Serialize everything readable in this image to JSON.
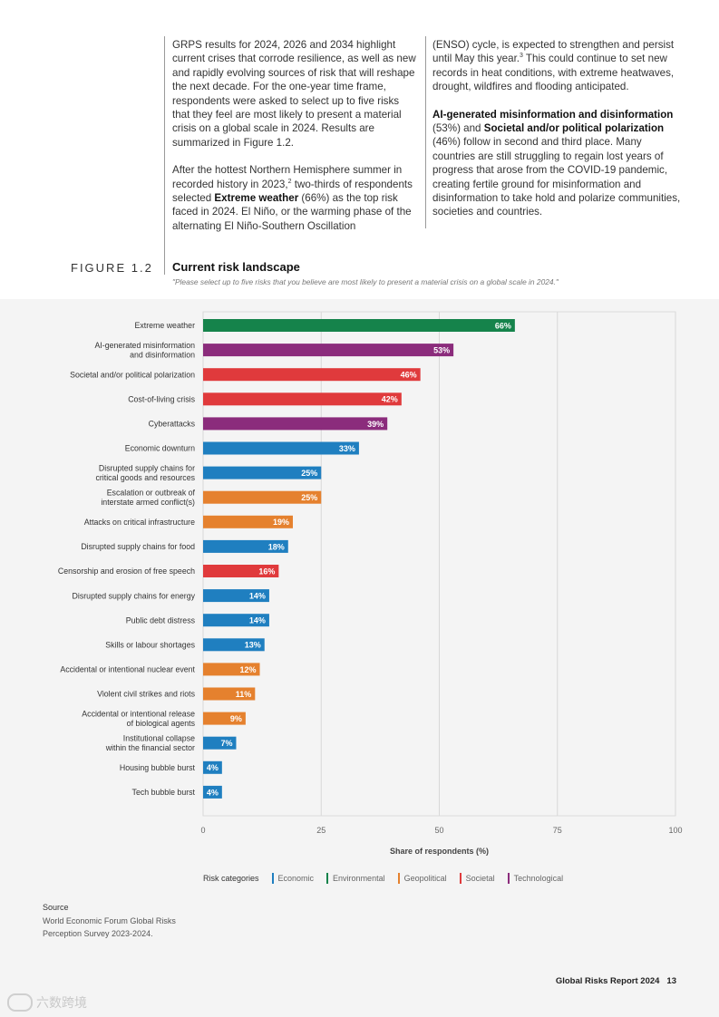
{
  "text": {
    "left_p1": "GRPS results for 2024, 2026 and 2034 highlight current crises that corrode resilience, as well as new and rapidly evolving sources of risk that will reshape the next decade. For the one-year time frame, respondents were asked to select up to five risks that they feel are most likely to present a material crisis on a global scale in 2024. Results are summarized in Figure 1.2.",
    "left_p2_a": "After the hottest Northern Hemisphere summer in recorded history in 2023,",
    "left_p2_sup": "2",
    "left_p2_b": " two-thirds of respondents selected ",
    "left_p2_bold": "Extreme weather",
    "left_p2_c": " (66%) as the top risk faced in 2024. El Niño, or the warming phase of the alternating El Niño-Southern Oscillation",
    "right_p1_a": "(ENSO) cycle, is expected to strengthen and persist until May this year.",
    "right_p1_sup": "3",
    "right_p1_b": " This could continue to set new records in heat conditions, with extreme heatwaves, drought, wildfires and flooding anticipated.",
    "right_p2_bold1": "AI-generated misinformation and disinformation",
    "right_p2_a": " (53%) and ",
    "right_p2_bold2": "Societal and/or political polarization",
    "right_p2_b": " (46%) follow in second and third place. Many countries are still struggling to regain lost years of progress that arose from the COVID-19 pandemic, creating fertile ground for misinformation and disinformation to take hold and polarize communities, societies and countries."
  },
  "figure": {
    "label": "FIGURE 1.2",
    "title": "Current risk landscape",
    "subtitle": "\"Please select up to five risks that you believe are most likely to present a material crisis on a global scale in 2024.\""
  },
  "chart_data": {
    "type": "bar",
    "orientation": "horizontal",
    "xlabel": "Share of respondents (%)",
    "xlim": [
      0,
      100
    ],
    "xticks": [
      "0",
      "25",
      "50",
      "75",
      "100"
    ],
    "value_suffix": "%",
    "categories": [
      "Extreme weather",
      "AI-generated misinformation|and disinformation",
      "Societal and/or political polarization",
      "Cost-of-living crisis",
      "Cyberattacks",
      "Economic downturn",
      "Disrupted supply chains for|critical goods and resources",
      "Escalation or outbreak of|interstate armed conflict(s)",
      "Attacks on critical infrastructure",
      "Disrupted supply chains for food",
      "Censorship and erosion of free speech",
      "Disrupted supply chains for energy",
      "Public debt distress",
      "Skills or labour shortages",
      "Accidental or intentional nuclear event",
      "Violent civil strikes and riots",
      "Accidental or intentional release|of biological agents",
      "Institutional collapse|within the financial sector",
      "Housing bubble burst",
      "Tech bubble burst"
    ],
    "values": [
      66,
      53,
      46,
      42,
      39,
      33,
      25,
      25,
      19,
      18,
      16,
      14,
      14,
      13,
      12,
      11,
      9,
      7,
      4,
      4
    ],
    "category_groups": [
      "Environmental",
      "Technological",
      "Societal",
      "Societal",
      "Technological",
      "Economic",
      "Economic",
      "Geopolitical",
      "Geopolitical",
      "Economic",
      "Societal",
      "Economic",
      "Economic",
      "Economic",
      "Geopolitical",
      "Geopolitical",
      "Geopolitical",
      "Economic",
      "Economic",
      "Economic"
    ],
    "legend_title": "Risk categories",
    "legend": [
      {
        "name": "Economic",
        "color": "#1f7fc0"
      },
      {
        "name": "Environmental",
        "color": "#15834b"
      },
      {
        "name": "Geopolitical",
        "color": "#e5812e"
      },
      {
        "name": "Societal",
        "color": "#e03a3c"
      },
      {
        "name": "Technological",
        "color": "#8b2c7c"
      }
    ]
  },
  "source": {
    "title": "Source",
    "text": "World Economic Forum Global Risks Perception Survey 2023-2024."
  },
  "footer": {
    "report": "Global Risks Report 2024",
    "page": "13"
  },
  "watermark": {
    "text": "六数跨境"
  }
}
